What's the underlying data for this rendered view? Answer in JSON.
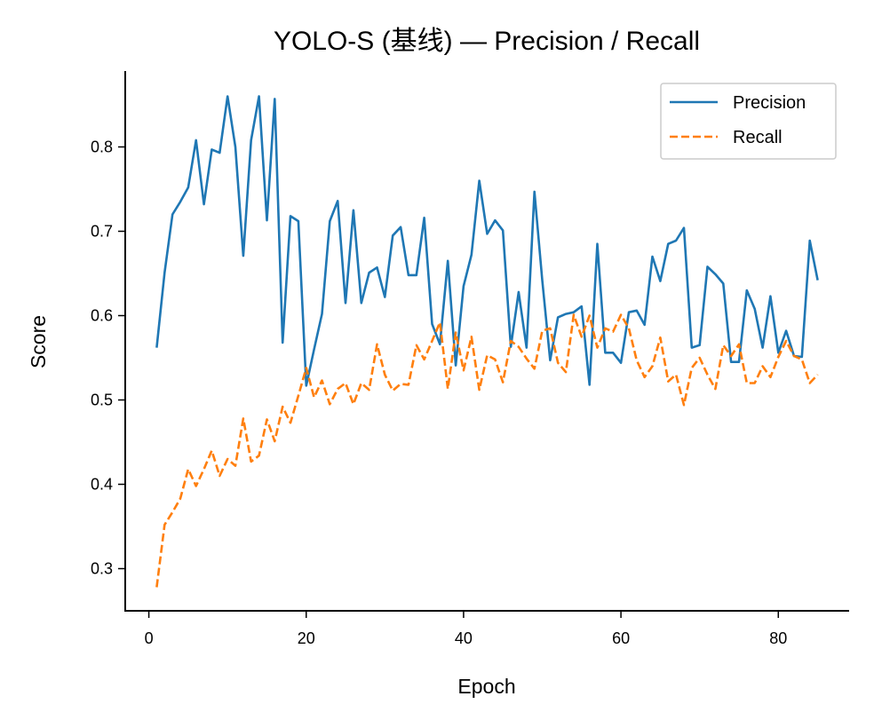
{
  "chart_data": {
    "type": "line",
    "title": "YOLO-S (基线) — Precision / Recall",
    "xlabel": "Epoch",
    "ylabel": "Score",
    "xlim": [
      -3,
      89
    ],
    "ylim": [
      0.25,
      0.89
    ],
    "xticks": [
      0,
      20,
      40,
      60,
      80
    ],
    "yticks": [
      0.3,
      0.4,
      0.5,
      0.6,
      0.7,
      0.8
    ],
    "grid": false,
    "legend_position": "top-right",
    "x": [
      1,
      2,
      3,
      4,
      5,
      6,
      7,
      8,
      9,
      10,
      11,
      12,
      13,
      14,
      15,
      16,
      17,
      18,
      19,
      20,
      21,
      22,
      23,
      24,
      25,
      26,
      27,
      28,
      29,
      30,
      31,
      32,
      33,
      34,
      35,
      36,
      37,
      38,
      39,
      40,
      41,
      42,
      43,
      44,
      45,
      46,
      47,
      48,
      49,
      50,
      51,
      52,
      53,
      54,
      55,
      56,
      57,
      58,
      59,
      60,
      61,
      62,
      63,
      64,
      65,
      66,
      67,
      68,
      69,
      70,
      71,
      72,
      73,
      74,
      75,
      76,
      77,
      78,
      79,
      80,
      81,
      82,
      83,
      84,
      85
    ],
    "series": [
      {
        "name": "Precision",
        "color": "#1f77b4",
        "style": "solid",
        "values": [
          0.562,
          0.651,
          0.72,
          0.735,
          0.752,
          0.808,
          0.732,
          0.797,
          0.793,
          0.86,
          0.8,
          0.671,
          0.808,
          0.86,
          0.713,
          0.857,
          0.568,
          0.718,
          0.712,
          0.517,
          0.56,
          0.602,
          0.712,
          0.736,
          0.615,
          0.725,
          0.615,
          0.651,
          0.657,
          0.622,
          0.695,
          0.705,
          0.648,
          0.648,
          0.716,
          0.59,
          0.566,
          0.665,
          0.541,
          0.635,
          0.672,
          0.76,
          0.697,
          0.713,
          0.701,
          0.563,
          0.628,
          0.562,
          0.747,
          0.642,
          0.547,
          0.598,
          0.602,
          0.604,
          0.611,
          0.518,
          0.685,
          0.556,
          0.556,
          0.544,
          0.604,
          0.606,
          0.589,
          0.67,
          0.641,
          0.685,
          0.689,
          0.704,
          0.562,
          0.565,
          0.658,
          0.649,
          0.638,
          0.545,
          0.545,
          0.63,
          0.608,
          0.562,
          0.623,
          0.556,
          0.582,
          0.552,
          0.551,
          0.689,
          0.642
        ]
      },
      {
        "name": "Recall",
        "color": "#ff7f0e",
        "style": "dashed",
        "values": [
          0.278,
          0.352,
          0.367,
          0.383,
          0.418,
          0.398,
          0.418,
          0.44,
          0.41,
          0.43,
          0.422,
          0.478,
          0.427,
          0.434,
          0.477,
          0.451,
          0.492,
          0.473,
          0.505,
          0.538,
          0.503,
          0.523,
          0.495,
          0.513,
          0.52,
          0.495,
          0.52,
          0.512,
          0.566,
          0.53,
          0.511,
          0.519,
          0.518,
          0.565,
          0.548,
          0.57,
          0.592,
          0.513,
          0.58,
          0.535,
          0.575,
          0.512,
          0.553,
          0.548,
          0.521,
          0.57,
          0.563,
          0.549,
          0.537,
          0.582,
          0.585,
          0.544,
          0.533,
          0.601,
          0.575,
          0.6,
          0.562,
          0.585,
          0.581,
          0.601,
          0.585,
          0.547,
          0.527,
          0.54,
          0.574,
          0.522,
          0.53,
          0.494,
          0.538,
          0.55,
          0.53,
          0.513,
          0.565,
          0.552,
          0.566,
          0.52,
          0.52,
          0.54,
          0.527,
          0.551,
          0.57,
          0.552,
          0.548,
          0.52,
          0.53
        ]
      }
    ]
  }
}
